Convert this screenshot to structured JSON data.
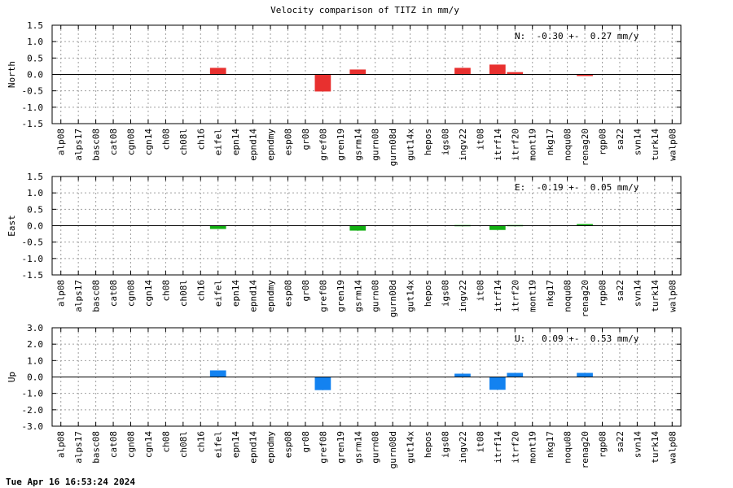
{
  "chart_data": {
    "type": "bar",
    "title": "Velocity comparison of TITZ in mm/y",
    "categories": [
      "alp08",
      "alps17",
      "basc08",
      "cat08",
      "cgn08",
      "cgn14",
      "ch08",
      "ch08l",
      "ch16",
      "eifel",
      "epn14",
      "epnd14",
      "epndmy",
      "esp08",
      "gr08",
      "gref08",
      "gren19",
      "gsrm14",
      "gurn08",
      "gurn08d",
      "gut14x",
      "hepos",
      "igs08",
      "ingv22",
      "it08",
      "itrf14",
      "itrf20",
      "mont19",
      "nkg17",
      "noqu08",
      "renag20",
      "rgp08",
      "sa22",
      "svn14",
      "turk14",
      "walp08"
    ],
    "grid": true,
    "panels": [
      {
        "ylabel": "North",
        "color": "#e8302f",
        "ylim": [
          -1.5,
          1.5
        ],
        "yticks": [
          "1.5",
          "1.0",
          "0.5",
          "0.0",
          "-0.5",
          "-1.0",
          "-1.5"
        ],
        "ytick_values": [
          1.5,
          1.0,
          0.5,
          0.0,
          -0.5,
          -1.0,
          -1.5
        ],
        "annotation": "N:  -0.30 +-  0.27 mm/y",
        "values": {
          "eifel": 0.2,
          "gref08": -0.52,
          "gsrm14": 0.15,
          "ingv22": 0.2,
          "itrf14": 0.3,
          "itrf20": 0.07,
          "renag20": -0.05
        }
      },
      {
        "ylabel": "East",
        "color": "#12b012",
        "ylim": [
          -1.5,
          1.5
        ],
        "yticks": [
          "1.5",
          "1.0",
          "0.5",
          "0.0",
          "-0.5",
          "-1.0",
          "-1.5"
        ],
        "ytick_values": [
          1.5,
          1.0,
          0.5,
          0.0,
          -0.5,
          -1.0,
          -1.5
        ],
        "annotation": "E:  -0.19 +-  0.05 mm/y",
        "values": {
          "eifel": -0.1,
          "gsrm14": -0.15,
          "ingv22": 0.02,
          "itrf14": -0.13,
          "itrf20": 0.02,
          "renag20": 0.05
        }
      },
      {
        "ylabel": "Up",
        "color": "#1382f0",
        "ylim": [
          -3.0,
          3.0
        ],
        "yticks": [
          "3.0",
          "2.0",
          "1.0",
          "0.0",
          "-1.0",
          "-2.0",
          "-3.0"
        ],
        "ytick_values": [
          3.0,
          2.0,
          1.0,
          0.0,
          -1.0,
          -2.0,
          -3.0
        ],
        "annotation": "U:   0.09 +-  0.53 mm/y",
        "values": {
          "eifel": 0.4,
          "gref08": -0.8,
          "ingv22": 0.2,
          "itrf14": -0.78,
          "itrf20": 0.25,
          "renag20": 0.25
        }
      }
    ]
  },
  "footer": {
    "timestamp": "Tue Apr 16 16:53:24 2024"
  }
}
